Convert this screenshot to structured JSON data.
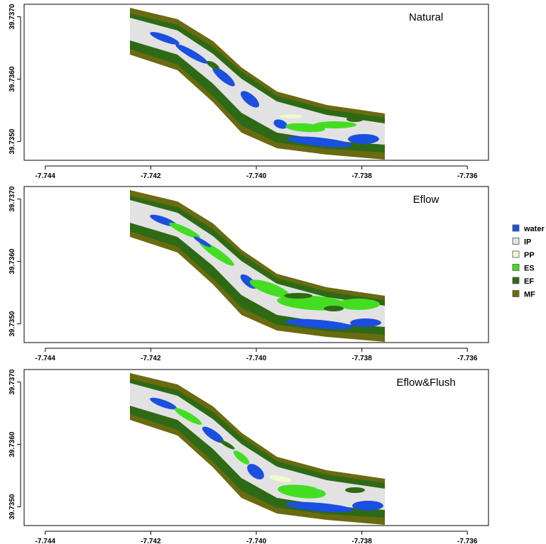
{
  "colors": {
    "water": "#1a4fe0",
    "IP": "#e2e2e2",
    "PP": "#f2f8d0",
    "ES": "#44dd22",
    "EF": "#2e6a16",
    "MF": "#6a6a10"
  },
  "legend": {
    "placement": "right",
    "entries": [
      {
        "key": "water",
        "label": "water"
      },
      {
        "key": "IP",
        "label": "IP"
      },
      {
        "key": "PP",
        "label": "PP"
      },
      {
        "key": "ES",
        "label": "ES"
      },
      {
        "key": "EF",
        "label": "EF"
      },
      {
        "key": "MF",
        "label": "MF"
      }
    ]
  },
  "chart_data": [
    {
      "type": "heatmap",
      "title": "Natural",
      "xlim": [
        -7.7444,
        -7.7356
      ],
      "ylim": [
        39.7347,
        39.7372
      ],
      "x_ticks": [
        -7.744,
        -7.742,
        -7.74,
        -7.738,
        -7.736
      ],
      "x_tick_labels": [
        "-7.744",
        "-7.742",
        "-7.740",
        "-7.738",
        "-7.736"
      ],
      "y_ticks": [
        39.735,
        39.736,
        39.737
      ],
      "y_tick_labels": [
        "39.7350",
        "39.7360",
        "39.7370"
      ],
      "grid": false,
      "dominant_classes": [
        "IP",
        "water",
        "EF",
        "MF"
      ]
    },
    {
      "type": "heatmap",
      "title": "Eflow",
      "xlim": [
        -7.7444,
        -7.7356
      ],
      "ylim": [
        39.7347,
        39.7372
      ],
      "x_ticks": [
        -7.744,
        -7.742,
        -7.74,
        -7.738,
        -7.736
      ],
      "x_tick_labels": [
        "-7.744",
        "-7.742",
        "-7.740",
        "-7.738",
        "-7.736"
      ],
      "y_ticks": [
        39.735,
        39.736,
        39.737
      ],
      "y_tick_labels": [
        "39.7350",
        "39.7360",
        "39.7370"
      ],
      "grid": false,
      "dominant_classes": [
        "ES",
        "water",
        "EF",
        "MF"
      ]
    },
    {
      "type": "heatmap",
      "title": "Eflow&Flush",
      "xlim": [
        -7.7444,
        -7.7356
      ],
      "ylim": [
        39.7347,
        39.7372
      ],
      "x_ticks": [
        -7.744,
        -7.742,
        -7.74,
        -7.738,
        -7.736
      ],
      "x_tick_labels": [
        "-7.744",
        "-7.742",
        "-7.740",
        "-7.738",
        "-7.736"
      ],
      "y_ticks": [
        39.735,
        39.736,
        39.737
      ],
      "y_tick_labels": [
        "39.7350",
        "39.7360",
        "39.7370"
      ],
      "grid": false,
      "dominant_classes": [
        "IP",
        "ES",
        "water",
        "EF",
        "MF"
      ]
    }
  ]
}
